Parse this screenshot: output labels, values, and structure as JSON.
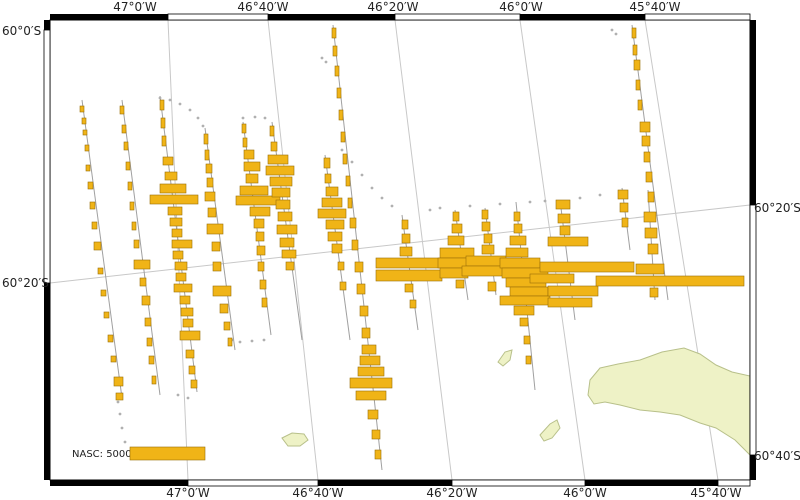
{
  "map": {
    "top_labels": [
      "47°0′W",
      "46°40′W",
      "46°20′W",
      "46°0′W",
      "45°40′W"
    ],
    "bottom_labels": [
      "47°0′W",
      "46°40′W",
      "46°20′W",
      "46°0′W",
      "45°40′W"
    ],
    "left_labels": [
      "60°0′S",
      "60°20′S"
    ],
    "right_labels": [
      "60°20′S",
      "60°40′S"
    ],
    "legend_label": "NASC: 5000",
    "colors": {
      "bar_fill": "#f0b417",
      "bar_stroke": "#9a6e08",
      "land_fill": "#eef2c6",
      "land_stroke": "#b8c08a",
      "graticule": "#c8c8c8",
      "frame": "#000000",
      "track": "#a0a0a0"
    }
  }
}
